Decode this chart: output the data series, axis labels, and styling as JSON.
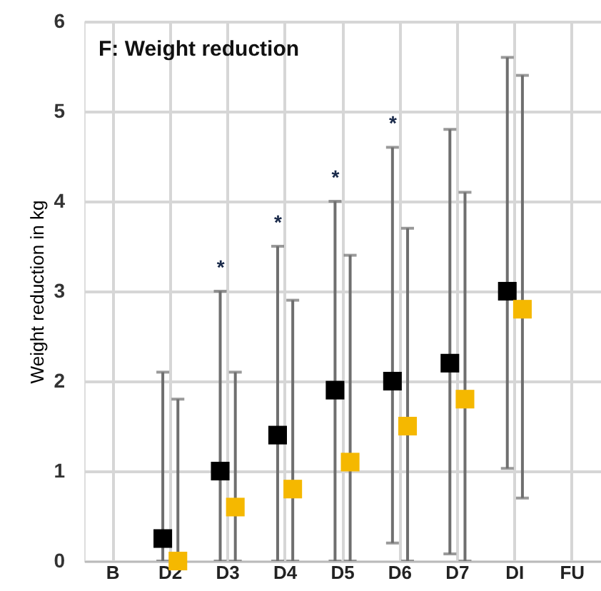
{
  "chart_data": {
    "type": "scatter",
    "title": "F: Weight reduction",
    "ylabel": "Weight reduction in kg",
    "categories": [
      "B",
      "D2",
      "D3",
      "D4",
      "D5",
      "D6",
      "D7",
      "DI",
      "FU"
    ],
    "series": [
      {
        "color": "#000000",
        "values": [
          null,
          0.25,
          1.0,
          1.4,
          1.9,
          2.0,
          2.2,
          3.0,
          null
        ],
        "errors": [
          null,
          [
            0,
            2.1
          ],
          [
            0,
            3.0
          ],
          [
            0,
            3.5
          ],
          [
            0,
            4.0
          ],
          [
            0.2,
            4.6
          ],
          [
            0.08,
            4.8
          ],
          [
            1.03,
            5.6
          ],
          null
        ]
      },
      {
        "color": "#f5b800",
        "values": [
          null,
          0.0,
          0.6,
          0.8,
          1.1,
          1.5,
          1.8,
          2.8,
          null
        ],
        "errors": [
          null,
          [
            0,
            1.8
          ],
          [
            0,
            2.1
          ],
          [
            0,
            2.9
          ],
          [
            0,
            3.4
          ],
          [
            0,
            3.7
          ],
          [
            0,
            4.1
          ],
          [
            0.7,
            5.4
          ],
          null
        ]
      }
    ],
    "annotations": [
      {
        "text": "*",
        "x": "D3",
        "y": 3.0
      },
      {
        "text": "*",
        "x": "D4",
        "y": 3.5
      },
      {
        "text": "*",
        "x": "D5",
        "y": 4.0
      },
      {
        "text": "*",
        "x": "D6",
        "y": 4.6
      }
    ],
    "ylim": [
      0,
      6
    ],
    "yticks": [
      0,
      1,
      2,
      3,
      4,
      5,
      6
    ],
    "grid": true,
    "marker": "square"
  }
}
